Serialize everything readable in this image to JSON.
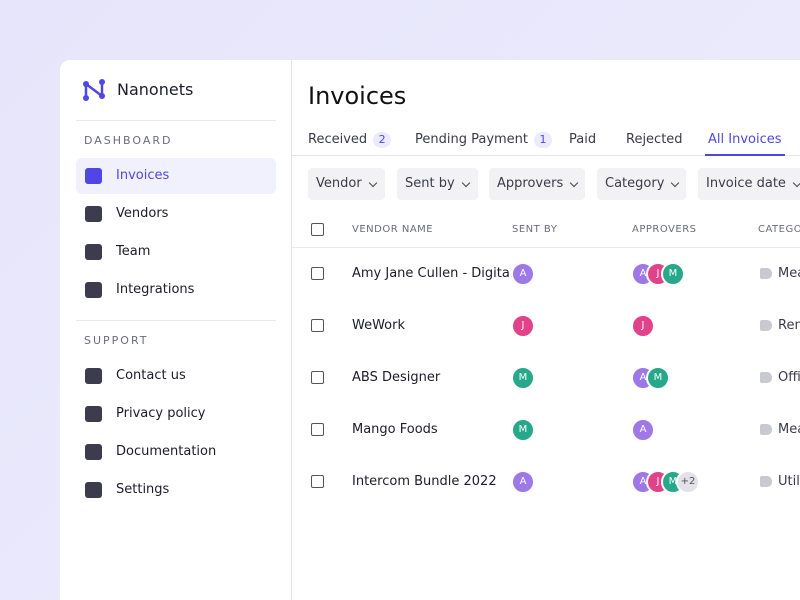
{
  "sidebar": {
    "brand": "Nanonets",
    "sections": [
      {
        "title": "DASHBOARD",
        "items": [
          "Invoices",
          "Vendors",
          "Team",
          "Integrations"
        ]
      },
      {
        "title": "SUPPORT",
        "items": [
          "Contact us",
          "Privacy policy",
          "Documentation",
          "Settings"
        ]
      }
    ]
  },
  "header": {
    "title": "Invoices"
  },
  "tabs": [
    {
      "label": "Received",
      "count": 2
    },
    {
      "label": "Pending Payment",
      "count": 1
    },
    {
      "label": "Paid"
    },
    {
      "label": "Rejected"
    },
    {
      "label": "All Invoices"
    }
  ],
  "filters": [
    "Vendor",
    "Sent by",
    "Approvers",
    "Category",
    "Invoice date"
  ],
  "table": {
    "columns": [
      "VENDOR NAME",
      "SENT BY",
      "APPROVERS",
      "CATEGO"
    ],
    "rows": [
      {
        "vendor": "Amy Jane Cullen - Digita...",
        "sent_by": "A",
        "approvers": [
          "A",
          "J",
          "M"
        ],
        "category": "Mea"
      },
      {
        "vendor": "WeWork",
        "sent_by": "J",
        "approvers": [
          "J"
        ],
        "category": "Ren"
      },
      {
        "vendor": "ABS Designer",
        "sent_by": "M",
        "approvers": [
          "A",
          "M"
        ],
        "category": "Offi"
      },
      {
        "vendor": "Mango Foods",
        "sent_by": "M",
        "approvers": [
          "A"
        ],
        "category": "Mea"
      },
      {
        "vendor": "Intercom Bundle 2022",
        "sent_by": "A",
        "approvers": [
          "A",
          "J",
          "M",
          "+2"
        ],
        "category": "Utili"
      }
    ]
  }
}
